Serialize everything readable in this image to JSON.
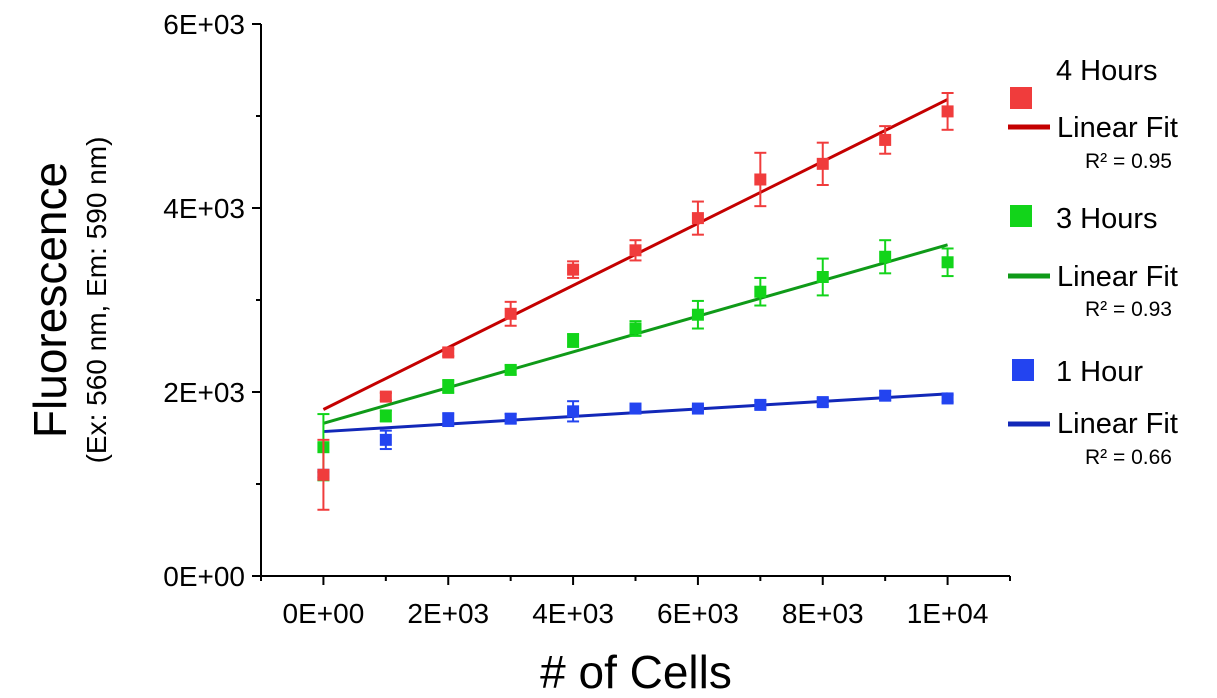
{
  "chart_data": {
    "type": "scatter",
    "xlabel": "# of Cells",
    "ylabel": "Fluorescence",
    "ylabel_sub": "(Ex: 560 nm, Em: 590 nm)",
    "xlim": [
      -1000,
      11000
    ],
    "ylim": [
      0,
      6000
    ],
    "x_ticks": [
      0,
      2000,
      4000,
      6000,
      8000,
      10000
    ],
    "x_tick_labels": [
      "0E+00",
      "2E+03",
      "4E+03",
      "6E+03",
      "8E+03",
      "1E+04"
    ],
    "y_ticks": [
      0,
      2000,
      4000,
      6000
    ],
    "y_tick_labels": [
      "0E+00",
      "2E+03",
      "4E+03",
      "6E+03"
    ],
    "grid": false,
    "legend_position": "right",
    "series": [
      {
        "name": "4 Hours",
        "color": "#f03c3c",
        "fit_color": "#c40000",
        "fit_label": "Linear Fit",
        "r2_label": "R² = 0.95",
        "x": [
          0,
          1000,
          2000,
          3000,
          4000,
          5000,
          6000,
          7000,
          8000,
          9000,
          10000
        ],
        "y": [
          1100,
          1950,
          2430,
          2850,
          3330,
          3540,
          3890,
          4310,
          4480,
          4740,
          5050
        ],
        "err": [
          380,
          40,
          40,
          130,
          90,
          110,
          180,
          290,
          230,
          150,
          200
        ],
        "fit": {
          "x": [
            0,
            10000
          ],
          "y": [
            1810,
            5180
          ]
        }
      },
      {
        "name": "3 Hours",
        "color": "#12d41a",
        "fit_color": "#0f9a18",
        "fit_label": "Linear Fit",
        "r2_label": "R² = 0.93",
        "x": [
          0,
          1000,
          2000,
          3000,
          4000,
          5000,
          6000,
          7000,
          8000,
          9000,
          10000
        ],
        "y": [
          1400,
          1740,
          2060,
          2240,
          2560,
          2690,
          2840,
          3090,
          3250,
          3470,
          3410
        ],
        "err": [
          360,
          60,
          70,
          50,
          70,
          80,
          150,
          150,
          200,
          180,
          150
        ],
        "fit": {
          "x": [
            0,
            10000
          ],
          "y": [
            1660,
            3600
          ]
        }
      },
      {
        "name": "1 Hour",
        "color": "#2344f0",
        "fit_color": "#1228b8",
        "fit_label": "Linear Fit",
        "r2_label": "R² = 0.66",
        "x": [
          0,
          1000,
          2000,
          3000,
          4000,
          5000,
          6000,
          7000,
          8000,
          9000,
          10000
        ],
        "y": [
          1100,
          1480,
          1700,
          1710,
          1790,
          1820,
          1820,
          1860,
          1890,
          1960,
          1930
        ],
        "err": [
          30,
          100,
          70,
          50,
          110,
          40,
          30,
          40,
          40,
          50,
          40
        ],
        "fit": {
          "x": [
            0,
            10000
          ],
          "y": [
            1570,
            1980
          ]
        }
      }
    ]
  }
}
